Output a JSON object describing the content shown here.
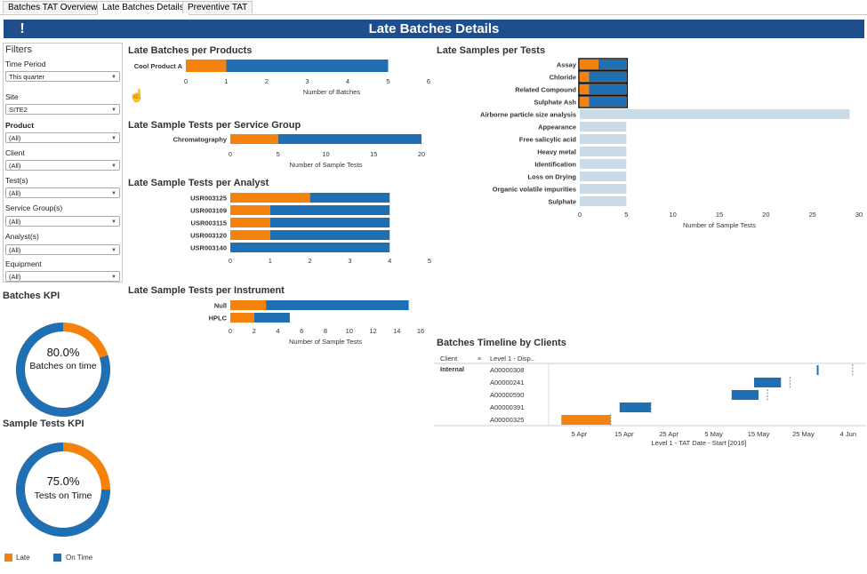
{
  "tabs": [
    "Batches TAT Overview",
    "Late Batches Details",
    "Preventive TAT"
  ],
  "active_tab": 1,
  "banner": {
    "title": "Late Batches Details",
    "icon": "exclamation-icon",
    "icon_glyph": "!"
  },
  "colors": {
    "late": "#f5820d",
    "on_time": "#1f6fb4",
    "light": "#c9dbe6",
    "banner": "#1e4f8c"
  },
  "filters": {
    "title": "Filters",
    "items": [
      {
        "label": "Time Period",
        "value": "This quarter"
      },
      {
        "label": "Site",
        "value": "SITE2"
      },
      {
        "label": "Product",
        "value": "(All)"
      },
      {
        "label": "Client",
        "value": "(All)"
      },
      {
        "label": "Test(s)",
        "value": "(All)"
      },
      {
        "label": "Service Group(s)",
        "value": "(All)"
      },
      {
        "label": "Analyst(s)",
        "value": "(All)"
      },
      {
        "label": "Equipment",
        "value": "(All)"
      }
    ]
  },
  "kpis": {
    "batches": {
      "title": "Batches KPI",
      "value": "80.0%",
      "label": "Batches on time",
      "fraction": 0.8
    },
    "tests": {
      "title": "Sample Tests KPI",
      "value": "75.0%",
      "label": "Tests on Time",
      "fraction": 0.75
    }
  },
  "legend": {
    "late": "Late",
    "on_time": "On Time"
  },
  "chart_data": [
    {
      "id": "products",
      "type": "bar",
      "title": "Late Batches per Products",
      "xlabel": "Number of Batches",
      "categories": [
        "Cool Product A"
      ],
      "series": [
        {
          "name": "Late",
          "values": [
            1
          ]
        },
        {
          "name": "On Time",
          "values": [
            4
          ]
        }
      ],
      "xlim": [
        0,
        6
      ],
      "xticks": [
        0,
        1,
        2,
        3,
        4,
        5,
        6
      ]
    },
    {
      "id": "service_group",
      "type": "bar",
      "title": "Late Sample Tests per Service Group",
      "xlabel": "Number of Sample Tests",
      "categories": [
        "Chromatography"
      ],
      "series": [
        {
          "name": "Late",
          "values": [
            5
          ]
        },
        {
          "name": "On Time",
          "values": [
            15
          ]
        }
      ],
      "xlim": [
        0,
        20
      ],
      "xticks": [
        0,
        5,
        10,
        15,
        20
      ]
    },
    {
      "id": "analyst",
      "type": "bar",
      "title": "Late Sample Tests per Analyst",
      "xlabel": "",
      "categories": [
        "USR003125",
        "USR003109",
        "USR003115",
        "USR003120",
        "USR003140"
      ],
      "series": [
        {
          "name": "Late",
          "values": [
            2,
            1,
            1,
            1,
            0
          ]
        },
        {
          "name": "On Time",
          "values": [
            2,
            3,
            3,
            3,
            4
          ]
        }
      ],
      "xlim": [
        0,
        5
      ],
      "xticks": [
        0,
        1,
        2,
        3,
        4,
        5
      ]
    },
    {
      "id": "instrument",
      "type": "bar",
      "title": "Late Sample Tests per Instrument",
      "xlabel": "Number of Sample Tests",
      "categories": [
        "Null",
        "HPLC"
      ],
      "series": [
        {
          "name": "Late",
          "values": [
            3,
            2
          ]
        },
        {
          "name": "On Time",
          "values": [
            12,
            3
          ]
        }
      ],
      "xlim": [
        0,
        16
      ],
      "xticks": [
        0,
        2,
        4,
        6,
        8,
        10,
        12,
        14,
        16
      ]
    },
    {
      "id": "tests",
      "type": "bar",
      "title": "Late Samples per Tests",
      "xlabel": "Number of Sample Tests",
      "categories": [
        "Assay",
        "Chloride",
        "Related Compound",
        "Sulphate Ash",
        "Airborne particle size analysis",
        "Appearance",
        "Free salicylic acid",
        "Heavy metal",
        "Identification",
        "Loss on Drying",
        "Organic volatile impurities",
        "Sulphate"
      ],
      "series": [
        {
          "name": "Late",
          "values": [
            2,
            1,
            1,
            1,
            0,
            0,
            0,
            0,
            0,
            0,
            0,
            0
          ]
        },
        {
          "name": "On Time",
          "values": [
            3,
            4,
            4,
            4,
            0,
            0,
            0,
            0,
            0,
            0,
            0,
            0
          ]
        },
        {
          "name": "Total",
          "values": [
            0,
            0,
            0,
            0,
            29,
            5,
            5,
            5,
            5,
            5,
            5,
            5
          ]
        }
      ],
      "xlim": [
        0,
        30
      ],
      "xticks": [
        0,
        5,
        10,
        15,
        20,
        25,
        30
      ]
    }
  ],
  "timeline": {
    "title": "Batches Timeline by Clients",
    "col_client": "Client",
    "col_level": "Level 1 - Disp..",
    "client": "Internal",
    "xlabel": "Level 1 - TAT Date - Start [2016]",
    "xticks": [
      "5 Apr",
      "15 Apr",
      "25 Apr",
      "5 May",
      "15 May",
      "25 May",
      "4 Jun"
    ],
    "rows": [
      {
        "id": "A00000308",
        "start": "2016-05-28",
        "end": "2016-05-28",
        "due": "2016-06-05"
      },
      {
        "id": "A00000241",
        "start": "2016-05-14",
        "end": "2016-05-20",
        "due": "2016-05-22"
      },
      {
        "id": "A00000590",
        "start": "2016-05-09",
        "end": "2016-05-15",
        "due": "2016-05-17"
      },
      {
        "id": "A00000391",
        "start": "2016-04-14",
        "end": "2016-04-21",
        "due": "2016-04-21"
      },
      {
        "id": "A00000325",
        "start": "2016-04-01",
        "end": "2016-04-12",
        "due": "2016-04-12"
      }
    ]
  }
}
